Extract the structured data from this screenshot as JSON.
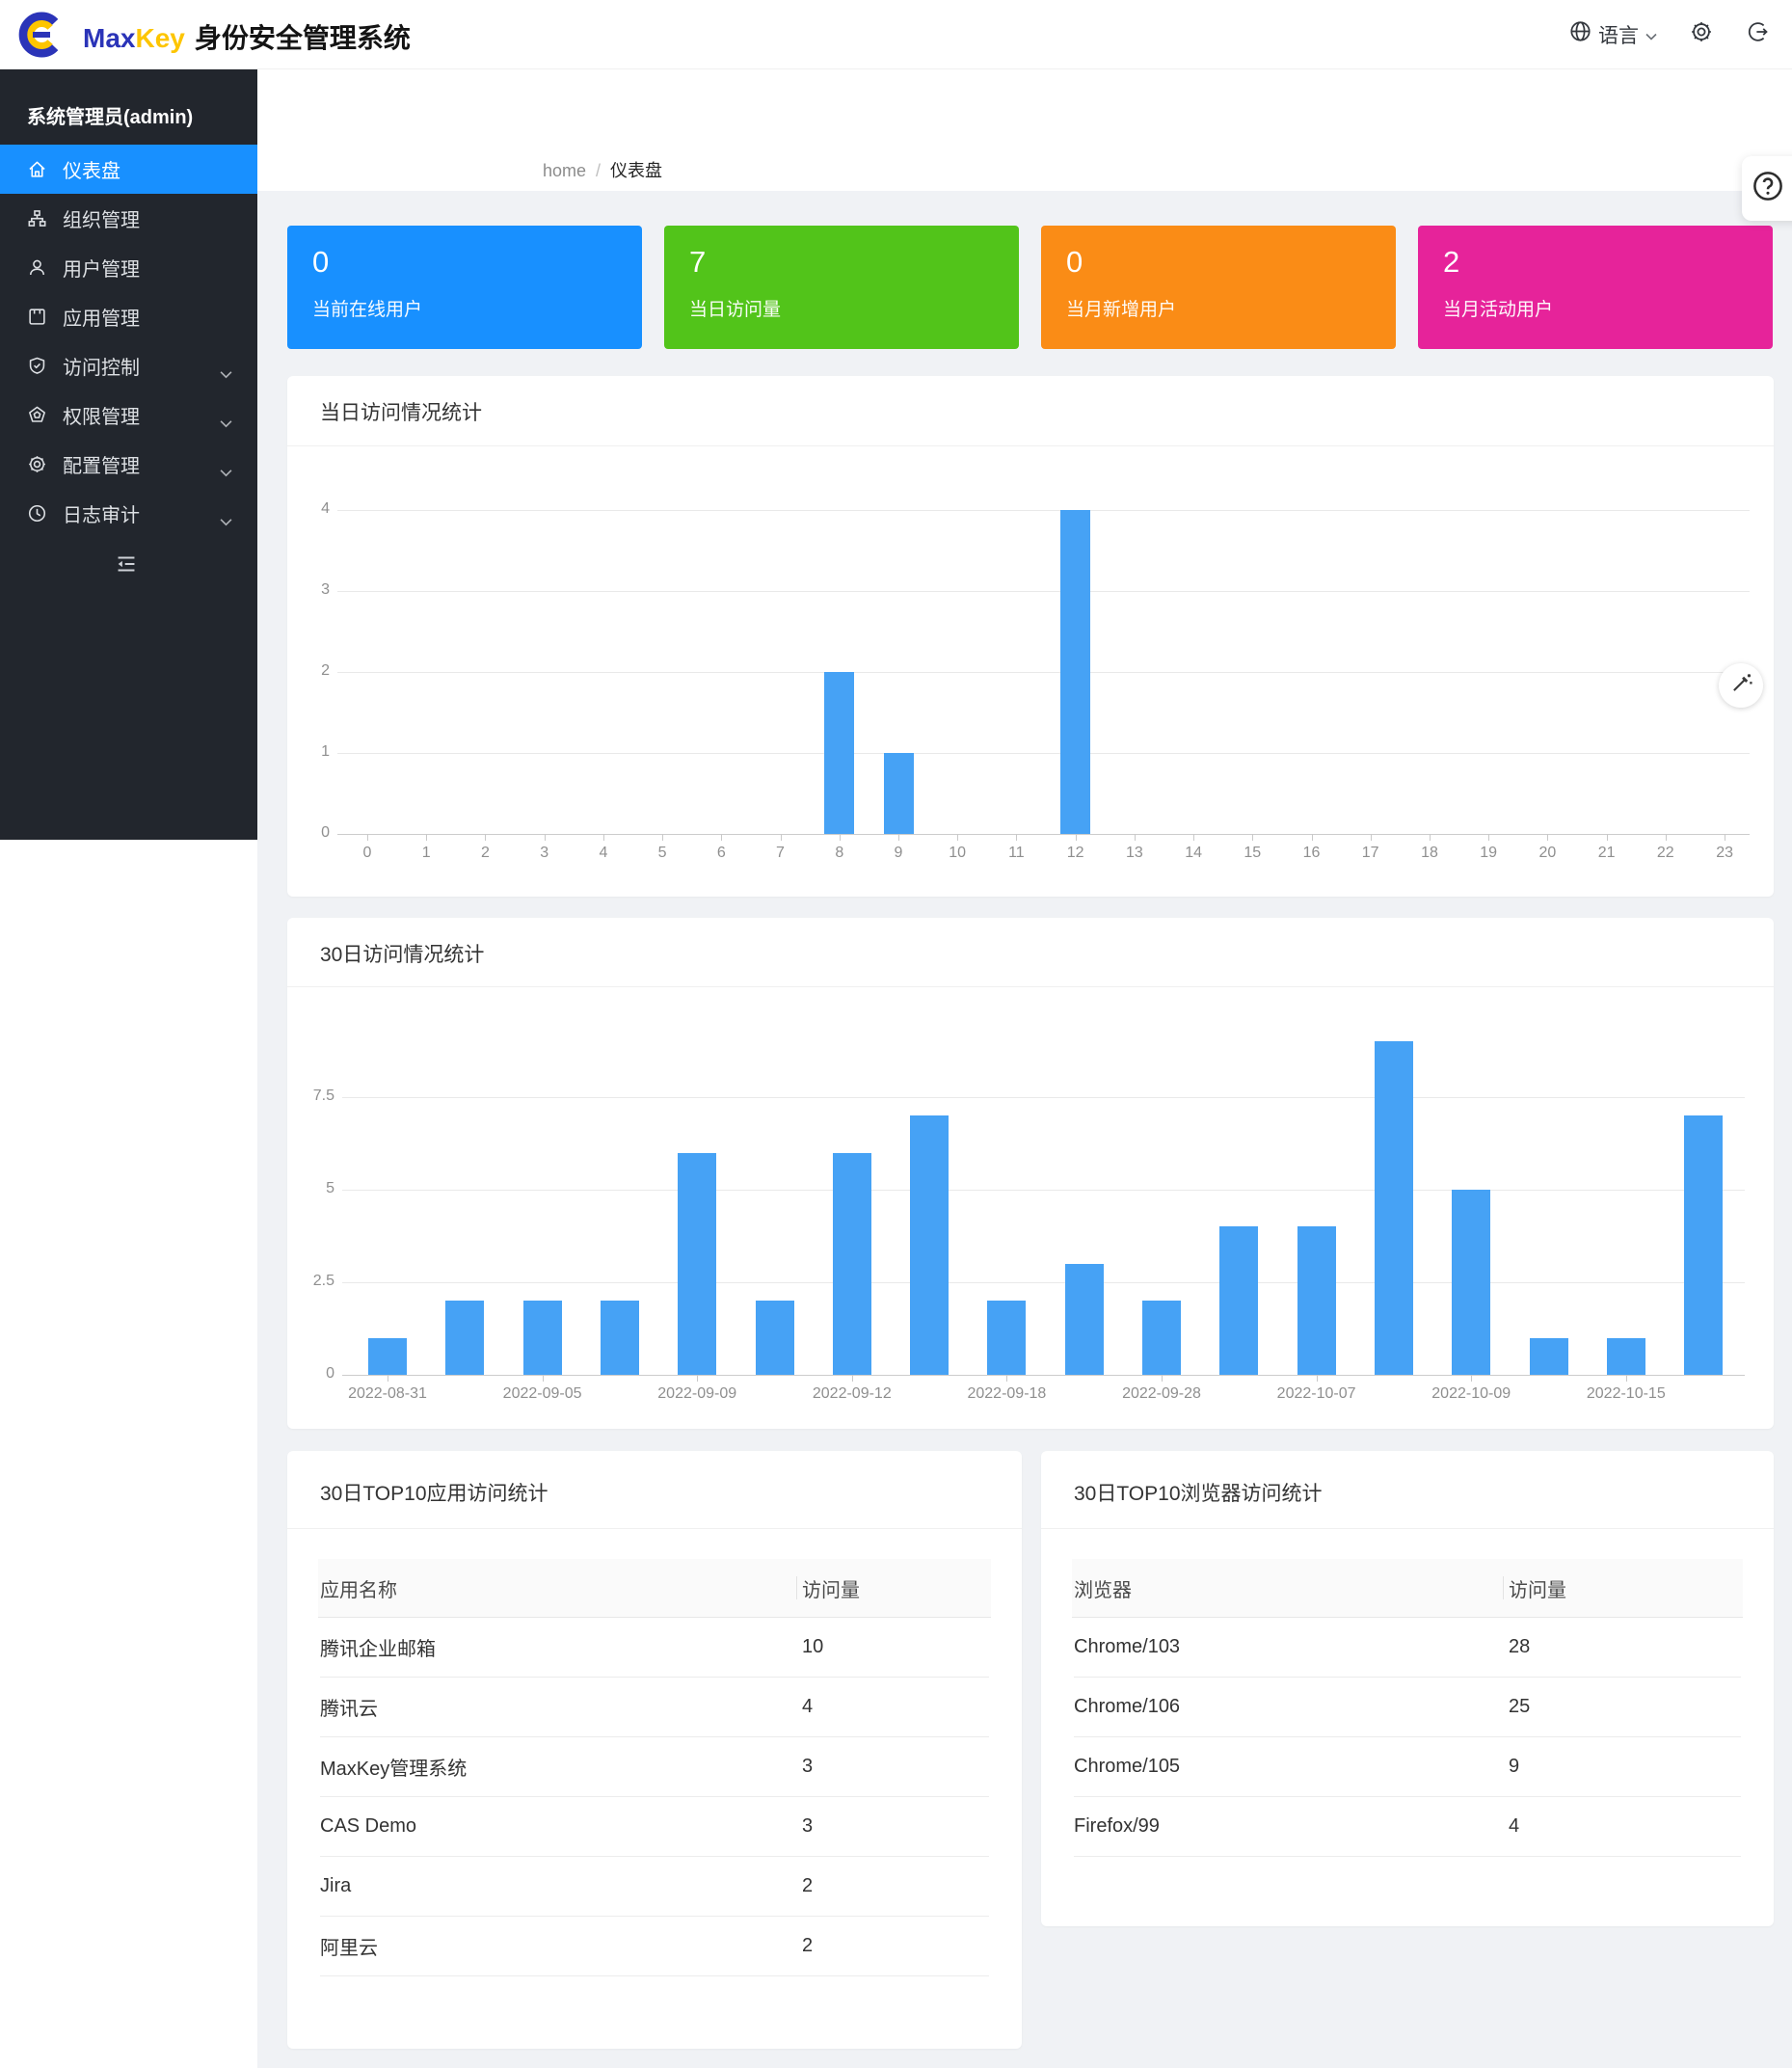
{
  "header": {
    "brand": {
      "max": "Max",
      "key": "Key",
      "suffix": "身份安全管理系统"
    },
    "language_label": "语言"
  },
  "sidebar": {
    "user": "系统管理员(admin)",
    "items": [
      {
        "label": "仪表盘",
        "icon": "home",
        "active": true,
        "expandable": false
      },
      {
        "label": "组织管理",
        "icon": "org",
        "active": false,
        "expandable": false
      },
      {
        "label": "用户管理",
        "icon": "user",
        "active": false,
        "expandable": false
      },
      {
        "label": "应用管理",
        "icon": "app",
        "active": false,
        "expandable": false
      },
      {
        "label": "访问控制",
        "icon": "shield",
        "active": false,
        "expandable": true
      },
      {
        "label": "权限管理",
        "icon": "pentagon",
        "active": false,
        "expandable": true
      },
      {
        "label": "配置管理",
        "icon": "gear",
        "active": false,
        "expandable": true
      },
      {
        "label": "日志审计",
        "icon": "clock",
        "active": false,
        "expandable": true
      }
    ]
  },
  "breadcrumb": {
    "home": "home",
    "separator": "/",
    "current": "仪表盘"
  },
  "page": {
    "title": "仪表盘"
  },
  "stat_cards": [
    {
      "value": "0",
      "label": "当前在线用户",
      "color": "#1890ff"
    },
    {
      "value": "7",
      "label": "当日访问量",
      "color": "#52c41a"
    },
    {
      "value": "0",
      "label": "当月新增用户",
      "color": "#fa8c16"
    },
    {
      "value": "2",
      "label": "当月活动用户",
      "color": "#e6239a"
    }
  ],
  "chart_data": [
    {
      "type": "bar",
      "title": "当日访问情况统计",
      "categories": [
        "0",
        "1",
        "2",
        "3",
        "4",
        "5",
        "6",
        "7",
        "8",
        "9",
        "10",
        "11",
        "12",
        "13",
        "14",
        "15",
        "16",
        "17",
        "18",
        "19",
        "20",
        "21",
        "22",
        "23"
      ],
      "values": [
        0,
        0,
        0,
        0,
        0,
        0,
        0,
        0,
        2,
        1,
        0,
        0,
        4,
        0,
        0,
        0,
        0,
        0,
        0,
        0,
        0,
        0,
        0,
        0
      ],
      "xlabel": "",
      "ylabel": "",
      "ylim": [
        0,
        4
      ],
      "yticks": [
        0,
        1,
        2,
        3,
        4
      ],
      "grid": true,
      "bar_color": "#46a2f5"
    },
    {
      "type": "bar",
      "title": "30日访问情况统计",
      "categories": [
        "2022-08-31",
        "",
        "2022-09-05",
        "",
        "2022-09-09",
        "",
        "2022-09-12",
        "",
        "2022-09-18",
        "",
        "2022-09-28",
        "",
        "2022-10-07",
        "",
        "2022-10-09",
        "",
        "2022-10-15",
        ""
      ],
      "values": [
        1,
        2,
        2,
        2,
        6,
        2,
        6,
        7,
        2,
        3,
        2,
        4,
        4,
        9,
        5,
        1,
        1,
        7
      ],
      "xlabel": "",
      "ylabel": "",
      "ylim": [
        0,
        9
      ],
      "yticks": [
        0,
        2.5,
        5,
        7.5
      ],
      "grid": true,
      "bar_color": "#46a2f5"
    }
  ],
  "tables": [
    {
      "title": "30日TOP10应用访问统计",
      "headers": [
        "应用名称",
        "访问量"
      ],
      "rows": [
        [
          "腾讯企业邮箱",
          "10"
        ],
        [
          "腾讯云",
          "4"
        ],
        [
          "MaxKey管理系统",
          "3"
        ],
        [
          "CAS Demo",
          "3"
        ],
        [
          "Jira",
          "2"
        ],
        [
          "阿里云",
          "2"
        ]
      ]
    },
    {
      "title": "30日TOP10浏览器访问统计",
      "headers": [
        "浏览器",
        "访问量"
      ],
      "rows": [
        [
          "Chrome/103",
          "28"
        ],
        [
          "Chrome/106",
          "25"
        ],
        [
          "Chrome/105",
          "9"
        ],
        [
          "Firefox/99",
          "4"
        ]
      ]
    }
  ]
}
